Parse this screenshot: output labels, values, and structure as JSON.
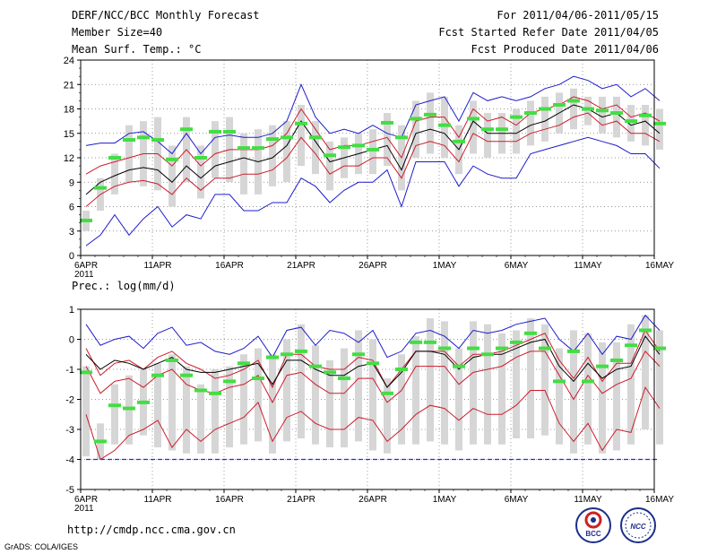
{
  "header": {
    "title": "DERF/NCC/BCC Monthly Forecast",
    "member_size": "Member Size=40",
    "variable1": "Mean Surf. Temp.: °C",
    "period": "For 2011/04/06-2011/05/15",
    "started": "Fcst Started Refer Date 2011/04/05",
    "produced": "Fcst Produced Date 2011/04/06"
  },
  "footer": {
    "url": "http://cmdp.ncc.cma.gov.cn",
    "grads": "GrADS: COLA/IGES",
    "logo1": "BCC",
    "logo2": "NCC"
  },
  "colors": {
    "max_line": "#1c1ccc",
    "mean_line": "#000000",
    "spread_line": "#cc1c2c",
    "obs_marker": "#44dd44",
    "box": "#d6d6d6",
    "floor_line": "#2233cc"
  },
  "chart_data": [
    {
      "type": "line",
      "title": "Mean Surf. Temp.: °C",
      "xlabel": "",
      "ylabel": "°C",
      "ylim": [
        0,
        24
      ],
      "yticks": [
        "24",
        "21",
        "18",
        "15",
        "12",
        "9",
        "6",
        "3",
        "0"
      ],
      "ytick_values": [
        24,
        21,
        18,
        15,
        12,
        9,
        6,
        3,
        0
      ],
      "xticks": [
        "6APR",
        "11APR",
        "16APR",
        "21APR",
        "26APR",
        "1MAY",
        "6MAY",
        "11MAY",
        "16MAY"
      ],
      "xtick_days": [
        0,
        5,
        10,
        15,
        20,
        25,
        30,
        35,
        40
      ],
      "xyear": "2011",
      "grid": true,
      "n_days": 40,
      "series": [
        {
          "name": "max",
          "values": [
            13.5,
            13.8,
            13.8,
            15.0,
            15.2,
            14.0,
            12.5,
            15.0,
            12.5,
            14.5,
            14.8,
            14.5,
            14.5,
            15.0,
            16.5,
            21.0,
            17.0,
            15.0,
            15.5,
            15.0,
            16.0,
            15.0,
            14.5,
            18.5,
            19.0,
            19.5,
            16.5,
            20.0,
            19.0,
            19.5,
            19.0,
            19.5,
            20.5,
            21.0,
            22.0,
            21.5,
            20.5,
            21.0,
            19.5,
            20.5,
            19.0
          ]
        },
        {
          "name": "upper",
          "values": [
            10.0,
            11.0,
            11.5,
            12.0,
            12.5,
            12.5,
            11.0,
            13.0,
            11.0,
            12.5,
            13.0,
            13.0,
            13.0,
            13.5,
            15.0,
            18.0,
            15.5,
            13.0,
            13.5,
            13.5,
            14.0,
            14.5,
            12.0,
            16.5,
            17.0,
            17.0,
            14.5,
            18.0,
            16.5,
            17.0,
            16.0,
            17.5,
            18.0,
            18.5,
            19.5,
            19.0,
            18.0,
            18.5,
            17.0,
            17.5,
            16.5
          ]
        },
        {
          "name": "mean",
          "values": [
            7.5,
            9.0,
            9.8,
            10.5,
            10.8,
            10.5,
            9.0,
            11.0,
            9.5,
            11.0,
            11.5,
            12.0,
            11.5,
            12.0,
            13.5,
            16.5,
            14.0,
            11.5,
            12.0,
            12.5,
            13.0,
            13.5,
            10.5,
            15.0,
            15.5,
            15.0,
            13.0,
            16.5,
            15.0,
            15.0,
            15.0,
            16.0,
            16.5,
            17.5,
            18.5,
            18.0,
            17.0,
            17.5,
            16.0,
            16.5,
            15.0
          ]
        },
        {
          "name": "lower",
          "values": [
            6.0,
            7.5,
            8.5,
            9.0,
            9.2,
            8.8,
            7.5,
            9.5,
            8.0,
            9.5,
            9.5,
            10.0,
            10.0,
            10.5,
            12.0,
            14.5,
            12.5,
            10.0,
            11.0,
            11.0,
            12.0,
            12.0,
            9.5,
            13.5,
            14.0,
            13.5,
            11.5,
            15.0,
            14.0,
            14.0,
            14.0,
            15.0,
            15.5,
            16.0,
            17.0,
            17.5,
            16.0,
            16.5,
            15.0,
            15.0,
            14.0
          ]
        },
        {
          "name": "min",
          "values": [
            1.2,
            2.5,
            5.0,
            2.5,
            4.5,
            6.0,
            3.5,
            5.0,
            4.5,
            7.5,
            7.5,
            5.5,
            5.5,
            6.5,
            6.5,
            9.5,
            8.5,
            6.5,
            8.0,
            9.0,
            9.0,
            10.5,
            6.0,
            11.5,
            11.5,
            11.5,
            8.5,
            11.0,
            10.0,
            9.5,
            9.5,
            12.5,
            13.0,
            13.5,
            14.0,
            14.5,
            14.0,
            13.5,
            12.5,
            12.5,
            10.7
          ]
        },
        {
          "name": "observed",
          "values": [
            4.3,
            8.3,
            12.0,
            14.2,
            14.5,
            14.2,
            11.8,
            15.5,
            12.0,
            15.2,
            15.2,
            13.2,
            13.2,
            14.3,
            14.5,
            16.2,
            14.5,
            12.3,
            13.3,
            13.5,
            13.0,
            16.3,
            14.5,
            16.8,
            17.3,
            16.0,
            14.0,
            16.8,
            15.5,
            15.5,
            17.0,
            17.5,
            18.0,
            18.5,
            19.0,
            18.0,
            17.8,
            17.5,
            16.5,
            17.2,
            16.2
          ]
        },
        {
          "name": "box_top",
          "values": [
            5.5,
            9.5,
            12.5,
            16.0,
            16.5,
            17.0,
            13.5,
            17.0,
            13.5,
            16.5,
            17.0,
            15.0,
            15.5,
            16.0,
            16.5,
            18.5,
            16.5,
            14.0,
            14.5,
            15.0,
            15.5,
            17.5,
            16.0,
            19.0,
            20.0,
            19.5,
            16.0,
            19.0,
            17.5,
            17.5,
            18.0,
            19.0,
            19.5,
            20.0,
            20.5,
            19.5,
            19.5,
            19.5,
            18.5,
            18.5,
            18.0
          ]
        },
        {
          "name": "box_bottom",
          "values": [
            3.0,
            5.5,
            7.5,
            9.0,
            8.5,
            8.0,
            6.0,
            9.0,
            7.0,
            9.5,
            9.0,
            7.5,
            7.5,
            8.5,
            9.0,
            11.0,
            10.0,
            8.0,
            9.5,
            10.0,
            10.0,
            11.0,
            8.0,
            12.0,
            12.5,
            12.0,
            10.0,
            12.5,
            12.0,
            12.5,
            12.5,
            13.5,
            14.0,
            15.0,
            15.5,
            16.0,
            15.0,
            14.5,
            14.0,
            13.5,
            13.0
          ]
        }
      ]
    },
    {
      "type": "line",
      "title": "Prec.: log(mm/d)",
      "xlabel": "",
      "ylabel": "log(mm/d)",
      "ylim": [
        -5,
        1
      ],
      "yticks": [
        "1",
        "0",
        "-1",
        "-2",
        "-3",
        "-4",
        "-5"
      ],
      "ytick_values": [
        1,
        0,
        -1,
        -2,
        -3,
        -4,
        -5
      ],
      "xticks": [
        "6APR",
        "11APR",
        "16APR",
        "21APR",
        "26APR",
        "1MAY",
        "6MAY",
        "11MAY",
        "16MAY"
      ],
      "xtick_days": [
        0,
        5,
        10,
        15,
        20,
        25,
        30,
        35,
        40
      ],
      "xyear": "2011",
      "floor": -4,
      "grid": true,
      "n_days": 40,
      "series": [
        {
          "name": "max",
          "values": [
            0.5,
            -0.2,
            0.0,
            0.1,
            -0.3,
            0.2,
            0.4,
            -0.2,
            -0.1,
            -0.4,
            -0.5,
            -0.3,
            0.1,
            -0.6,
            0.3,
            0.4,
            -0.2,
            0.3,
            0.2,
            -0.1,
            0.3,
            -0.6,
            -0.4,
            0.2,
            0.3,
            0.1,
            -0.3,
            0.3,
            0.2,
            0.3,
            0.5,
            0.6,
            0.7,
            0.0,
            -0.4,
            0.2,
            -0.5,
            0.1,
            0.0,
            0.8,
            0.3
          ]
        },
        {
          "name": "upper",
          "values": [
            -0.3,
            -1.2,
            -0.8,
            -0.7,
            -1.0,
            -0.6,
            -0.4,
            -0.8,
            -1.0,
            -1.3,
            -1.2,
            -1.0,
            -0.7,
            -1.6,
            -0.5,
            -0.5,
            -0.9,
            -1.0,
            -1.0,
            -0.6,
            -0.7,
            -1.6,
            -1.0,
            -0.4,
            -0.4,
            -0.4,
            -0.9,
            -0.5,
            -0.5,
            -0.4,
            -0.2,
            0.0,
            0.2,
            -0.7,
            -1.3,
            -0.6,
            -1.4,
            -0.8,
            -0.8,
            0.3,
            -0.4
          ]
        },
        {
          "name": "mean",
          "values": [
            -0.5,
            -1.0,
            -0.7,
            -0.8,
            -1.0,
            -0.8,
            -0.6,
            -1.0,
            -1.1,
            -1.1,
            -1.0,
            -0.9,
            -0.8,
            -1.5,
            -0.7,
            -0.7,
            -1.0,
            -1.2,
            -1.2,
            -0.9,
            -0.8,
            -1.6,
            -1.1,
            -0.4,
            -0.4,
            -0.5,
            -1.0,
            -0.6,
            -0.5,
            -0.5,
            -0.3,
            -0.1,
            0.0,
            -0.9,
            -1.4,
            -0.8,
            -1.3,
            -1.0,
            -0.9,
            0.1,
            -0.5
          ]
        },
        {
          "name": "lower",
          "values": [
            -0.9,
            -1.8,
            -1.4,
            -1.3,
            -1.6,
            -1.2,
            -1.0,
            -1.5,
            -1.7,
            -1.8,
            -1.6,
            -1.5,
            -1.2,
            -2.1,
            -1.2,
            -1.1,
            -1.5,
            -1.8,
            -1.8,
            -1.3,
            -1.3,
            -2.1,
            -1.7,
            -0.9,
            -0.9,
            -0.9,
            -1.5,
            -1.1,
            -1.0,
            -0.9,
            -0.6,
            -0.4,
            -0.4,
            -1.2,
            -2.0,
            -1.2,
            -1.8,
            -1.5,
            -1.3,
            -0.4,
            -0.9
          ]
        },
        {
          "name": "min",
          "values": [
            -2.5,
            -4.0,
            -3.7,
            -3.2,
            -3.0,
            -2.7,
            -3.6,
            -3.0,
            -3.4,
            -3.0,
            -2.8,
            -2.6,
            -2.1,
            -3.4,
            -2.6,
            -2.4,
            -2.8,
            -3.0,
            -3.0,
            -2.6,
            -2.7,
            -3.4,
            -3.0,
            -2.5,
            -2.2,
            -2.3,
            -2.7,
            -2.3,
            -2.5,
            -2.5,
            -2.2,
            -1.7,
            -1.7,
            -2.8,
            -3.4,
            -2.8,
            -3.7,
            -3.0,
            -3.1,
            -1.6,
            -2.3
          ]
        },
        {
          "name": "observed",
          "values": [
            -1.1,
            -3.4,
            -2.2,
            -2.3,
            -2.1,
            -1.2,
            -0.7,
            -1.2,
            -1.7,
            -1.8,
            -1.4,
            -0.8,
            -1.3,
            -0.6,
            -0.5,
            -0.4,
            -0.9,
            -1.1,
            -1.3,
            -0.5,
            -0.8,
            -1.8,
            -1.0,
            -0.1,
            -0.1,
            -0.3,
            -0.9,
            -0.3,
            -0.5,
            -0.3,
            -0.1,
            0.2,
            -0.3,
            -1.4,
            -0.4,
            -1.4,
            -0.9,
            -0.7,
            -0.2,
            0.3,
            -0.3
          ]
        },
        {
          "name": "box_top",
          "values": [
            -0.9,
            -2.8,
            -1.5,
            -1.2,
            -1.0,
            -0.8,
            -0.5,
            -0.9,
            -1.5,
            -1.0,
            -0.9,
            -0.5,
            -0.3,
            -0.5,
            0.0,
            0.5,
            -0.2,
            -0.7,
            -0.3,
            0.3,
            0.0,
            -1.3,
            -0.5,
            0.1,
            0.7,
            0.6,
            -0.3,
            0.6,
            0.5,
            0.2,
            0.3,
            0.7,
            0.5,
            -0.3,
            0.3,
            0.2,
            -0.1,
            -0.1,
            0.5,
            0.8,
            0.3
          ]
        },
        {
          "name": "box_bottom",
          "values": [
            -3.9,
            -4.0,
            -3.5,
            -3.5,
            -3.2,
            -3.6,
            -3.7,
            -3.8,
            -3.8,
            -3.8,
            -3.6,
            -3.5,
            -3.4,
            -3.8,
            -3.4,
            -3.3,
            -3.5,
            -3.6,
            -3.6,
            -3.4,
            -3.7,
            -3.8,
            -3.5,
            -3.5,
            -3.4,
            -3.5,
            -3.7,
            -3.5,
            -3.5,
            -3.5,
            -3.3,
            -3.3,
            -3.2,
            -3.5,
            -3.8,
            -3.5,
            -3.8,
            -3.7,
            -3.5,
            -3.0,
            -3.5
          ]
        }
      ]
    }
  ]
}
